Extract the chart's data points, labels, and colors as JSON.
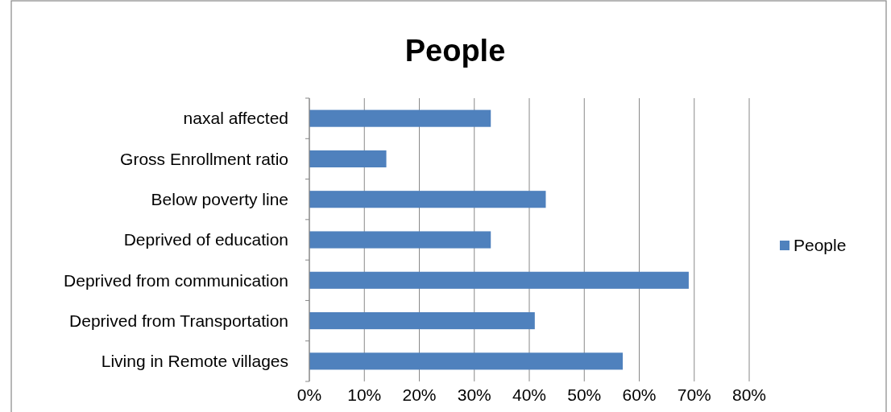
{
  "chart_data": {
    "type": "bar",
    "orientation": "horizontal",
    "title": "People",
    "categories": [
      "naxal affected",
      "Gross Enrollment ratio",
      "Below poverty line",
      "Deprived of education",
      "Deprived from communication",
      "Deprived from Transportation",
      "Living in Remote villages"
    ],
    "series": [
      {
        "name": "People",
        "color": "#4f81bd",
        "values": [
          33,
          14,
          43,
          33,
          69,
          41,
          57
        ]
      }
    ],
    "xlim": [
      0,
      80
    ],
    "xticks": [
      {
        "value": 0,
        "label": "0%"
      },
      {
        "value": 10,
        "label": "10%"
      },
      {
        "value": 20,
        "label": "20%"
      },
      {
        "value": 30,
        "label": "30%"
      },
      {
        "value": 40,
        "label": "40%"
      },
      {
        "value": 50,
        "label": "50%"
      },
      {
        "value": 60,
        "label": "60%"
      },
      {
        "value": 70,
        "label": "70%"
      },
      {
        "value": 80,
        "label": "80%"
      }
    ],
    "grid": "x",
    "legend": "right"
  }
}
